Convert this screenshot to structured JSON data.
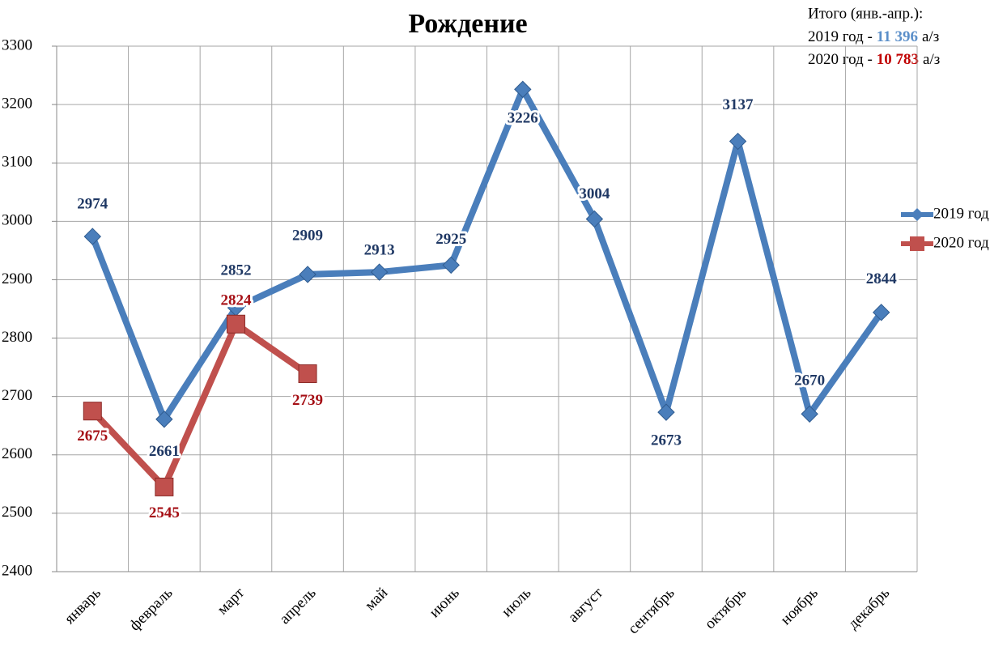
{
  "chart_data": {
    "type": "line",
    "title": "Рождение",
    "categories": [
      "январь",
      "февраль",
      "март",
      "апрель",
      "май",
      "июнь",
      "июль",
      "август",
      "сентябрь",
      "октябрь",
      "ноябрь",
      "декабрь"
    ],
    "series": [
      {
        "name": "2019 год",
        "color": "#4a7ebb",
        "label_color": "#1f3864",
        "marker": "diamond",
        "values": [
          2974,
          2661,
          2852,
          2909,
          2913,
          2925,
          3226,
          3004,
          2673,
          3137,
          2670,
          2844
        ]
      },
      {
        "name": "2020 год",
        "color": "#c0504d",
        "label_color": "#a50f15",
        "marker": "square",
        "values": [
          2675,
          2545,
          2824,
          2739,
          null,
          null,
          null,
          null,
          null,
          null,
          null,
          null
        ]
      }
    ],
    "ylim": [
      2400,
      3300
    ],
    "yticks": [
      2400,
      2500,
      2600,
      2700,
      2800,
      2900,
      3000,
      3100,
      3200,
      3300
    ],
    "grid": true,
    "legend": "right",
    "annotation": {
      "title": "Итого (янв.-апр.):",
      "lines": [
        {
          "label": "2019 год -",
          "value": "11 396",
          "unit": "а/з",
          "color": "#5b8fc9"
        },
        {
          "label": "2020 год -",
          "value": "10 783",
          "unit": "а/з",
          "color": "#c00000"
        }
      ]
    }
  }
}
